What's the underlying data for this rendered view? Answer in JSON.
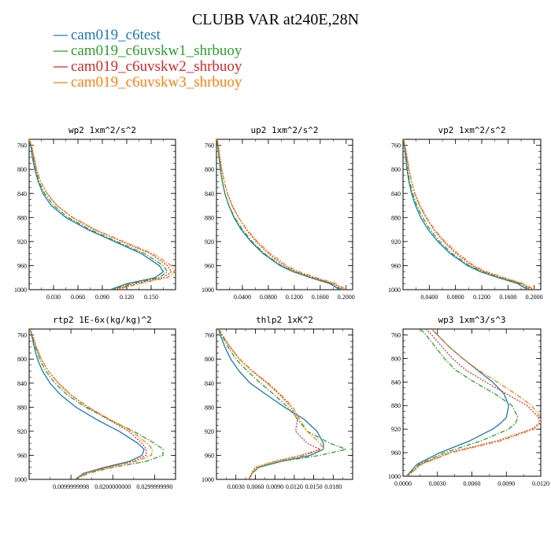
{
  "figure": {
    "title": "CLUBB VAR at240E,28N",
    "legend": [
      {
        "label": "cam019_c6test",
        "color": "#1f77b4",
        "dash": "solid"
      },
      {
        "label": "cam019_c6uvskw1_shrbuoy",
        "color": "#2ca02c",
        "dash": "dashdot"
      },
      {
        "label": "cam019_c6uvskw2_shrbuoy",
        "color": "#d62728",
        "dash": "dot"
      },
      {
        "label": "cam019_c6uvskw3_shrbuoy",
        "color": "#ff7f0e",
        "dash": "dashdot"
      }
    ]
  },
  "chart_data": [
    {
      "type": "line",
      "title": "wp2  1xm^2/s^2",
      "xlim": [
        0,
        0.18
      ],
      "ylim": [
        1000,
        750
      ],
      "y_inverted": true,
      "xticks": [
        "0.030",
        "0.060",
        "0.090",
        "0.120",
        "0.150"
      ],
      "xtick_values": [
        0.03,
        0.06,
        0.09,
        0.12,
        0.15
      ],
      "yticks": [
        "760",
        "800",
        "840",
        "880",
        "920",
        "960",
        "1000"
      ],
      "pressure": [
        750,
        760,
        780,
        800,
        820,
        840,
        860,
        880,
        900,
        920,
        940,
        960,
        970,
        980,
        990,
        1000
      ],
      "series": [
        {
          "name": "cam019_c6test",
          "values": [
            0.0,
            0.002,
            0.004,
            0.007,
            0.011,
            0.017,
            0.027,
            0.045,
            0.072,
            0.105,
            0.138,
            0.16,
            0.165,
            0.155,
            0.12,
            0.1
          ]
        },
        {
          "name": "cam019_c6uvskw1_shrbuoy",
          "values": [
            0.0,
            0.002,
            0.005,
            0.008,
            0.012,
            0.019,
            0.03,
            0.048,
            0.075,
            0.108,
            0.142,
            0.165,
            0.17,
            0.16,
            0.125,
            0.102
          ]
        },
        {
          "name": "cam019_c6uvskw2_shrbuoy",
          "values": [
            0.0,
            0.003,
            0.006,
            0.009,
            0.014,
            0.022,
            0.034,
            0.053,
            0.08,
            0.114,
            0.149,
            0.17,
            0.175,
            0.165,
            0.13,
            0.105
          ]
        },
        {
          "name": "cam019_c6uvskw3_shrbuoy",
          "values": [
            0.0,
            0.003,
            0.006,
            0.009,
            0.014,
            0.022,
            0.034,
            0.054,
            0.081,
            0.116,
            0.152,
            0.175,
            0.18,
            0.17,
            0.135,
            0.108
          ]
        }
      ]
    },
    {
      "type": "line",
      "title": "up2  1xm^2/s^2",
      "xlim": [
        0,
        0.21
      ],
      "ylim": [
        1000,
        750
      ],
      "y_inverted": true,
      "xticks": [
        "0.0400",
        "0.0800",
        "0.1200",
        "0.1600",
        "0.2000"
      ],
      "xtick_values": [
        0.04,
        0.08,
        0.12,
        0.16,
        0.2
      ],
      "yticks": [
        "760",
        "800",
        "840",
        "880",
        "920",
        "960",
        "1000"
      ],
      "pressure": [
        750,
        760,
        780,
        800,
        820,
        840,
        860,
        880,
        900,
        920,
        940,
        960,
        970,
        980,
        990,
        1000
      ],
      "series": [
        {
          "name": "cam019_c6test",
          "values": [
            0.001,
            0.002,
            0.004,
            0.006,
            0.009,
            0.013,
            0.019,
            0.027,
            0.038,
            0.053,
            0.072,
            0.098,
            0.118,
            0.145,
            0.175,
            0.19
          ]
        },
        {
          "name": "cam019_c6uvskw1_shrbuoy",
          "values": [
            0.001,
            0.002,
            0.004,
            0.006,
            0.009,
            0.013,
            0.019,
            0.028,
            0.04,
            0.055,
            0.074,
            0.1,
            0.12,
            0.147,
            0.177,
            0.193
          ]
        },
        {
          "name": "cam019_c6uvskw2_shrbuoy",
          "values": [
            0.001,
            0.003,
            0.005,
            0.008,
            0.012,
            0.017,
            0.024,
            0.034,
            0.046,
            0.061,
            0.08,
            0.104,
            0.123,
            0.15,
            0.18,
            0.197
          ]
        },
        {
          "name": "cam019_c6uvskw3_shrbuoy",
          "values": [
            0.001,
            0.003,
            0.005,
            0.008,
            0.012,
            0.017,
            0.024,
            0.034,
            0.047,
            0.063,
            0.083,
            0.108,
            0.127,
            0.154,
            0.184,
            0.2
          ]
        }
      ]
    },
    {
      "type": "line",
      "title": "vp2  1xm^2/s^2",
      "xlim": [
        0,
        0.21
      ],
      "ylim": [
        1000,
        750
      ],
      "y_inverted": true,
      "xticks": [
        "0.0400",
        "0.0800",
        "0.1200",
        "0.1600",
        "0.2000"
      ],
      "xtick_values": [
        0.04,
        0.08,
        0.12,
        0.16,
        0.2
      ],
      "yticks": [
        "760",
        "800",
        "840",
        "880",
        "920",
        "960",
        "1000"
      ],
      "pressure": [
        750,
        760,
        780,
        800,
        820,
        840,
        860,
        880,
        900,
        920,
        940,
        960,
        970,
        980,
        990,
        1000
      ],
      "series": [
        {
          "name": "cam019_c6test",
          "values": [
            0.001,
            0.002,
            0.004,
            0.006,
            0.009,
            0.013,
            0.019,
            0.027,
            0.038,
            0.053,
            0.072,
            0.098,
            0.118,
            0.145,
            0.175,
            0.19
          ]
        },
        {
          "name": "cam019_c6uvskw1_shrbuoy",
          "values": [
            0.001,
            0.002,
            0.005,
            0.007,
            0.01,
            0.015,
            0.021,
            0.03,
            0.041,
            0.056,
            0.075,
            0.101,
            0.121,
            0.148,
            0.178,
            0.194
          ]
        },
        {
          "name": "cam019_c6uvskw2_shrbuoy",
          "values": [
            0.001,
            0.003,
            0.006,
            0.009,
            0.013,
            0.018,
            0.025,
            0.035,
            0.047,
            0.062,
            0.081,
            0.105,
            0.124,
            0.151,
            0.181,
            0.198
          ]
        },
        {
          "name": "cam019_c6uvskw3_shrbuoy",
          "values": [
            0.001,
            0.003,
            0.006,
            0.009,
            0.013,
            0.018,
            0.026,
            0.036,
            0.048,
            0.064,
            0.084,
            0.108,
            0.127,
            0.154,
            0.184,
            0.2
          ]
        }
      ]
    },
    {
      "type": "line",
      "title": "rtp2  1E-6x(kg/kg)^2",
      "xlim": [
        0,
        0.035
      ],
      "ylim": [
        1000,
        750
      ],
      "y_inverted": true,
      "xticks": [
        "0.0099999998",
        "0.0200000000",
        "0.0299999990"
      ],
      "xtick_values": [
        0.01,
        0.02,
        0.03
      ],
      "yticks": [
        "760",
        "800",
        "840",
        "880",
        "920",
        "960",
        "1000"
      ],
      "pressure": [
        750,
        760,
        780,
        800,
        820,
        840,
        860,
        880,
        900,
        920,
        940,
        950,
        960,
        970,
        980,
        990,
        1000
      ],
      "series": [
        {
          "name": "cam019_c6test",
          "values": [
            0.0002,
            0.0006,
            0.0012,
            0.002,
            0.0032,
            0.005,
            0.0076,
            0.0112,
            0.016,
            0.0215,
            0.026,
            0.0275,
            0.027,
            0.024,
            0.018,
            0.013,
            0.011
          ]
        },
        {
          "name": "cam019_c6uvskw1_shrbuoy",
          "values": [
            0.0002,
            0.0007,
            0.0015,
            0.0025,
            0.004,
            0.0062,
            0.0092,
            0.0135,
            0.019,
            0.025,
            0.03,
            0.032,
            0.032,
            0.028,
            0.02,
            0.014,
            0.0112
          ]
        },
        {
          "name": "cam019_c6uvskw2_shrbuoy",
          "values": [
            0.0002,
            0.0008,
            0.0017,
            0.0029,
            0.0046,
            0.007,
            0.01,
            0.014,
            0.0188,
            0.0238,
            0.027,
            0.028,
            0.028,
            0.0248,
            0.0185,
            0.0132,
            0.011
          ]
        },
        {
          "name": "cam019_c6uvskw3_shrbuoy",
          "values": [
            0.0002,
            0.0008,
            0.0017,
            0.0029,
            0.0046,
            0.007,
            0.0101,
            0.0142,
            0.0192,
            0.0245,
            0.0282,
            0.0295,
            0.0292,
            0.0255,
            0.019,
            0.0135,
            0.0112
          ]
        }
      ]
    },
    {
      "type": "line",
      "title": "thlp2  1xK^2",
      "xlim": [
        0,
        0.021
      ],
      "ylim": [
        1000,
        750
      ],
      "y_inverted": true,
      "xticks": [
        "0.0030",
        "0.0060",
        "0.0090",
        "0.0120",
        "0.0150",
        "0.0180"
      ],
      "xtick_values": [
        0.003,
        0.006,
        0.009,
        0.012,
        0.015,
        0.018
      ],
      "yticks": [
        "760",
        "800",
        "840",
        "880",
        "920",
        "960",
        "1000"
      ],
      "pressure": [
        750,
        760,
        780,
        800,
        820,
        840,
        860,
        880,
        900,
        920,
        940,
        950,
        960,
        970,
        980,
        990,
        1000
      ],
      "series": [
        {
          "name": "cam019_c6test",
          "values": [
            0.0003,
            0.0006,
            0.0013,
            0.0022,
            0.0035,
            0.0052,
            0.0078,
            0.0105,
            0.0135,
            0.0155,
            0.0165,
            0.0165,
            0.0145,
            0.01,
            0.0065,
            0.0055,
            0.005
          ]
        },
        {
          "name": "cam019_c6uvskw1_shrbuoy",
          "values": [
            0.0003,
            0.0008,
            0.0018,
            0.003,
            0.0048,
            0.0068,
            0.009,
            0.011,
            0.0125,
            0.014,
            0.0175,
            0.02,
            0.016,
            0.01,
            0.0065,
            0.0055,
            0.005
          ]
        },
        {
          "name": "cam019_c6uvskw2_shrbuoy",
          "values": [
            0.0004,
            0.0009,
            0.0021,
            0.0035,
            0.0055,
            0.0078,
            0.0098,
            0.0115,
            0.0125,
            0.0122,
            0.014,
            0.016,
            0.013,
            0.009,
            0.006,
            0.0054,
            0.005
          ]
        },
        {
          "name": "cam019_c6uvskw3_shrbuoy",
          "values": [
            0.0004,
            0.0009,
            0.0021,
            0.0036,
            0.0056,
            0.008,
            0.01,
            0.0118,
            0.0128,
            0.014,
            0.016,
            0.0165,
            0.0135,
            0.0092,
            0.0062,
            0.0055,
            0.005
          ]
        }
      ]
    },
    {
      "type": "line",
      "title": "wp3  1xm^3/s^3",
      "xlim": [
        0,
        0.012
      ],
      "ylim": [
        1000,
        750
      ],
      "y_inverted": true,
      "xticks": [
        "0.0000",
        "0.0030",
        "0.0060",
        "0.0090",
        "0.0120"
      ],
      "xtick_values": [
        0,
        0.003,
        0.006,
        0.009,
        0.012
      ],
      "yticks": [
        "760",
        "800",
        "840",
        "880",
        "920",
        "960",
        "1000"
      ],
      "pressure": [
        750,
        760,
        780,
        800,
        820,
        840,
        860,
        880,
        900,
        910,
        920,
        940,
        960,
        980,
        1000
      ],
      "series": [
        {
          "name": "cam019_c6test",
          "values": [
            0.0025,
            0.003,
            0.004,
            0.0052,
            0.0065,
            0.0078,
            0.0088,
            0.0092,
            0.009,
            0.0085,
            0.0078,
            0.0058,
            0.0032,
            0.0012,
            0.0003
          ]
        },
        {
          "name": "cam019_c6uvskw1_shrbuoy",
          "values": [
            0.0015,
            0.002,
            0.0028,
            0.0036,
            0.0046,
            0.0062,
            0.008,
            0.0095,
            0.01,
            0.0098,
            0.0092,
            0.0068,
            0.0036,
            0.0014,
            0.0004
          ]
        },
        {
          "name": "cam019_c6uvskw2_shrbuoy",
          "values": [
            0.002,
            0.0025,
            0.0034,
            0.0043,
            0.0055,
            0.0072,
            0.009,
            0.0108,
            0.0118,
            0.0119,
            0.0112,
            0.0082,
            0.004,
            0.0015,
            0.0004
          ]
        },
        {
          "name": "cam019_c6uvskw3_shrbuoy",
          "values": [
            0.0025,
            0.003,
            0.004,
            0.0052,
            0.0066,
            0.0082,
            0.0098,
            0.0112,
            0.012,
            0.012,
            0.0114,
            0.0085,
            0.0042,
            0.0016,
            0.0004
          ]
        }
      ]
    }
  ]
}
